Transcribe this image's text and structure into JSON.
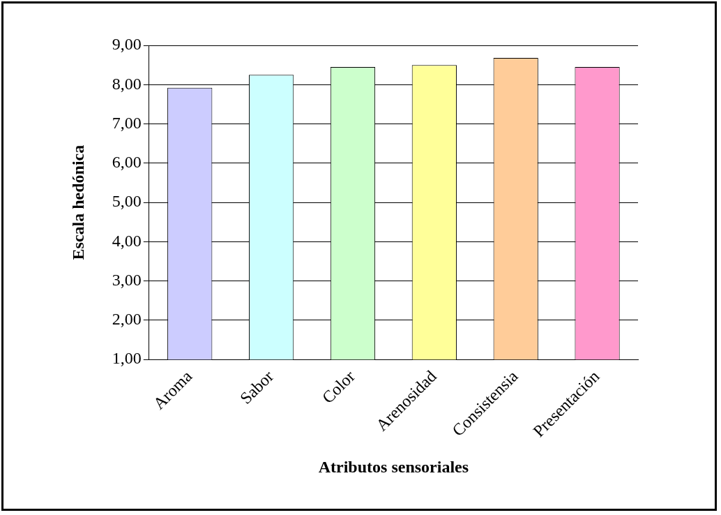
{
  "chart_data": {
    "type": "bar",
    "xlabel": "Atributos sensoriales",
    "ylabel": "Escala hedónica",
    "categories": [
      "Aroma",
      "Sabor",
      "Color",
      "Arenosidad",
      "Consistensia",
      "Presentación"
    ],
    "values": [
      7.92,
      8.25,
      8.45,
      8.5,
      8.68,
      8.45
    ],
    "colors": [
      "#ccccff",
      "#ccffff",
      "#ccffcc",
      "#ffff99",
      "#ffcc99",
      "#ff99cc"
    ],
    "ylim": [
      1,
      9
    ],
    "yticks": [
      {
        "value": 1,
        "label": "1,00"
      },
      {
        "value": 2,
        "label": "2,00"
      },
      {
        "value": 3,
        "label": "3,00"
      },
      {
        "value": 4,
        "label": "4,00"
      },
      {
        "value": 5,
        "label": "5,00"
      },
      {
        "value": 6,
        "label": "6,00"
      },
      {
        "value": 7,
        "label": "7,00"
      },
      {
        "value": 8,
        "label": "8,00"
      },
      {
        "value": 9,
        "label": "9,00"
      }
    ],
    "grid": "y",
    "legend": false
  }
}
